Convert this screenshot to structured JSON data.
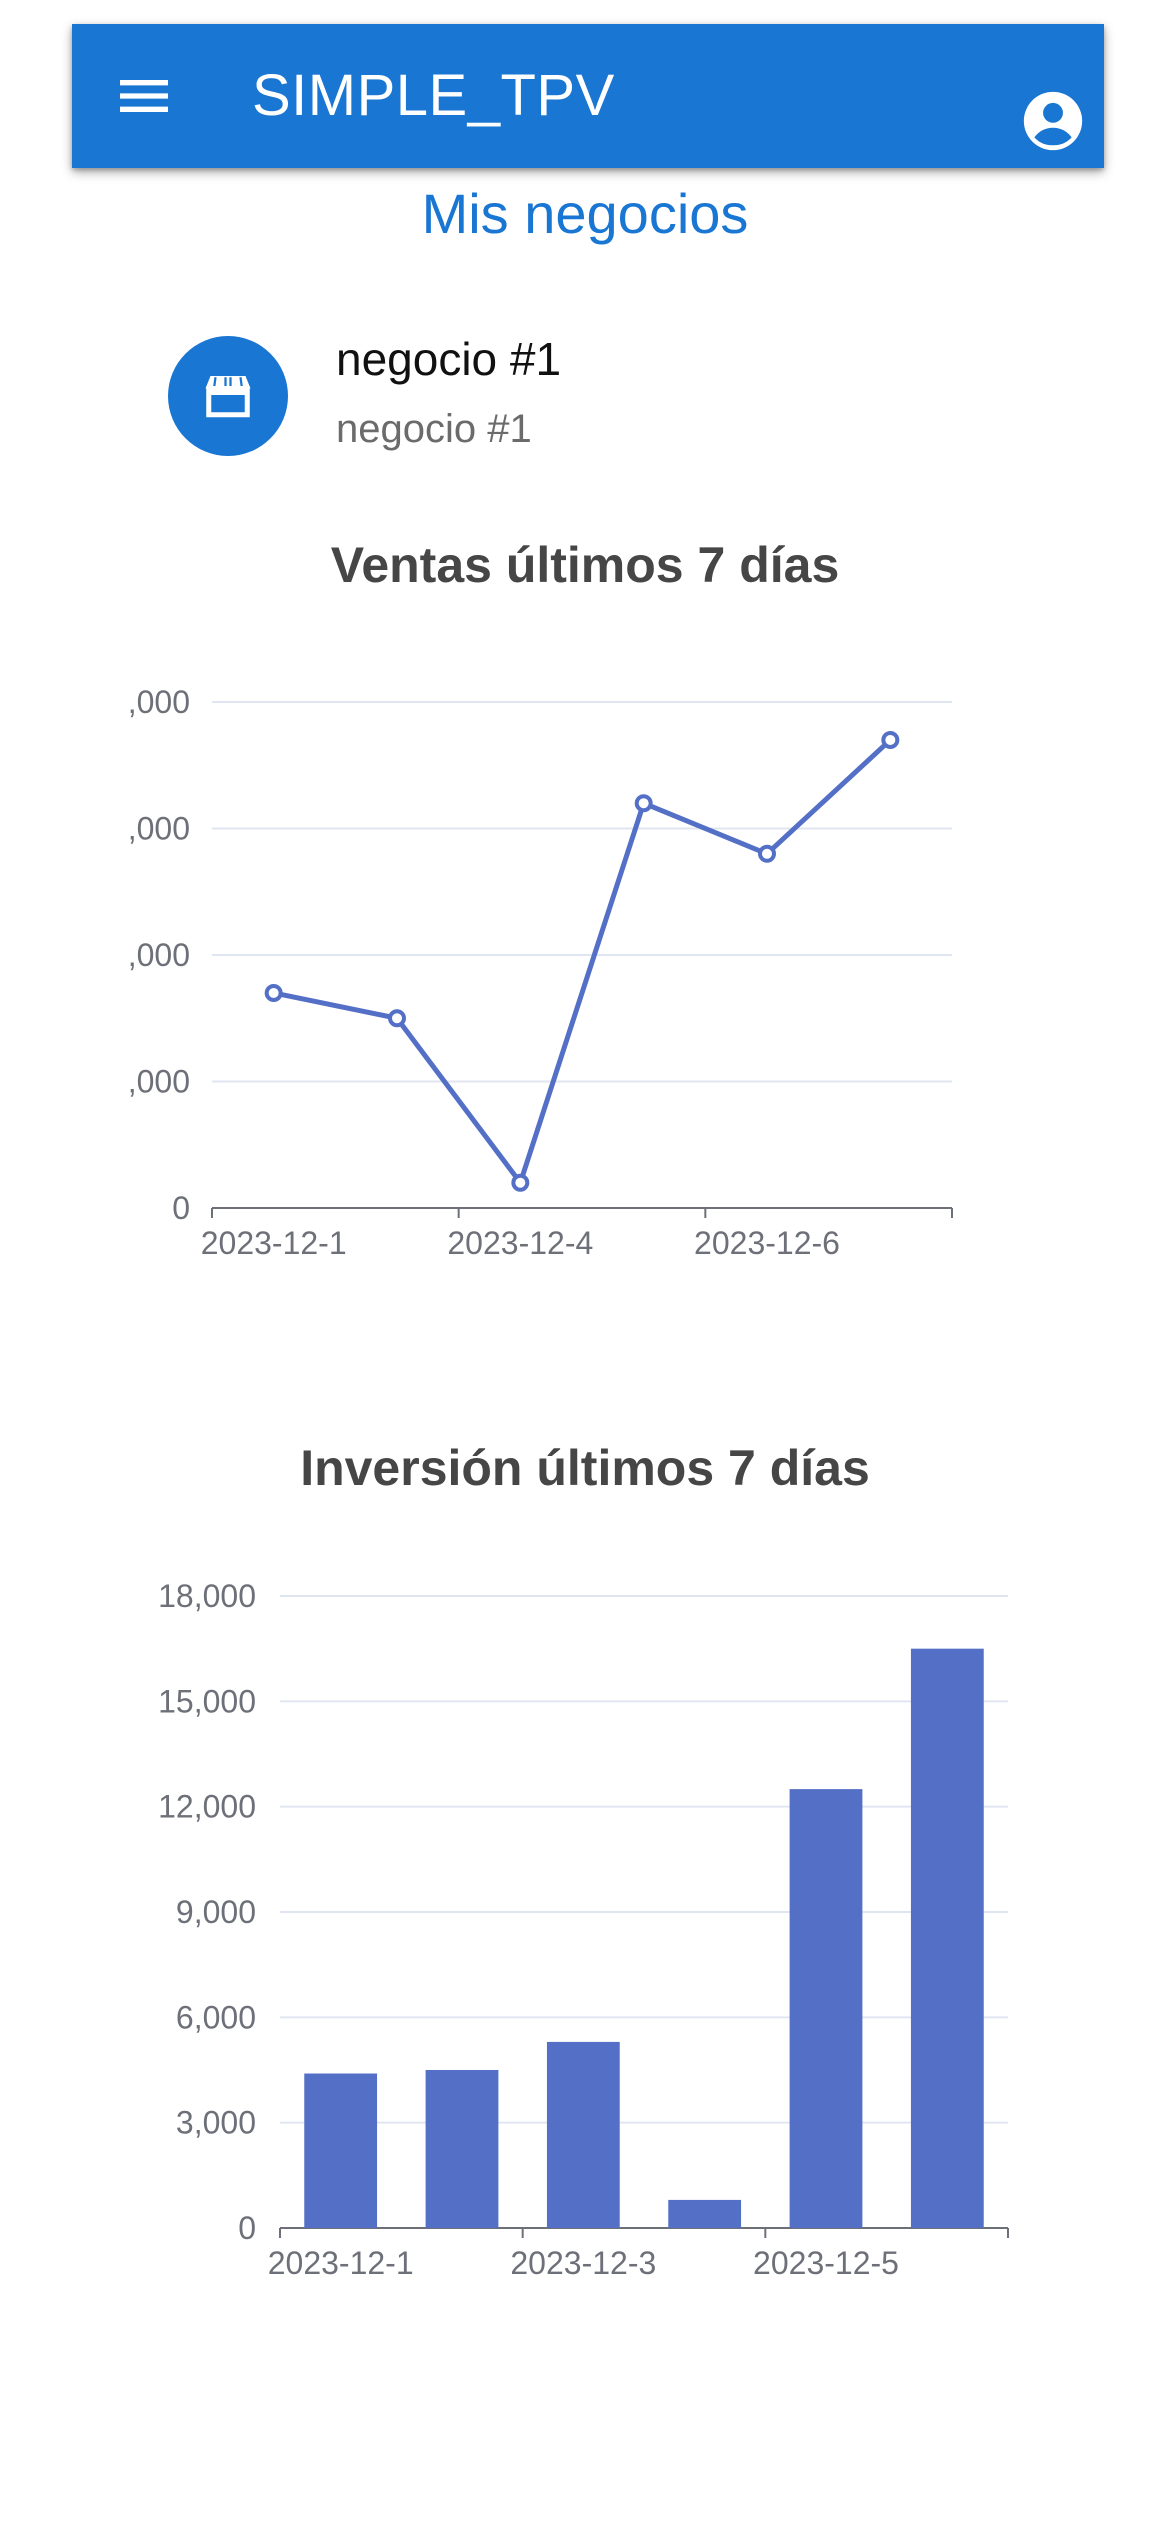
{
  "app_bar": {
    "title": "SIMPLE_TPV",
    "menu_icon": "menu-icon",
    "account_icon": "account-circle-icon",
    "color": "#1976d2"
  },
  "page_title": "Mis negocios",
  "business": {
    "name": "negocio #1",
    "subtitle": "negocio #1",
    "icon": "store-icon"
  },
  "chart_data": [
    {
      "type": "line",
      "title": "Ventas últimos 7 días",
      "categories": [
        "2023-12-1",
        "",
        "2023-12-4",
        "",
        "2023-12-6",
        ""
      ],
      "x_tick_labels": [
        "2023-12-1",
        "2023-12-4",
        "2023-12-6"
      ],
      "y_tick_labels": [
        ",000",
        ",000",
        ",000",
        ",000",
        "0"
      ],
      "values": [
        17000,
        15000,
        2000,
        32000,
        28000,
        37000
      ],
      "ylim": [
        0,
        40000
      ],
      "grid": true,
      "color": "#5470c6"
    },
    {
      "type": "bar",
      "title": "Inversión últimos 7 días",
      "categories": [
        "2023-12-1",
        "",
        "2023-12-3",
        "",
        "2023-12-5",
        ""
      ],
      "x_tick_labels": [
        "2023-12-1",
        "2023-12-3",
        "2023-12-5"
      ],
      "y_tick_labels": [
        "18,000",
        "15,000",
        "12,000",
        "9,000",
        "6,000",
        "3,000",
        "0"
      ],
      "values": [
        4400,
        4500,
        5300,
        800,
        12500,
        16500
      ],
      "ylim": [
        0,
        18000
      ],
      "grid": true,
      "color": "#5470c6"
    }
  ]
}
